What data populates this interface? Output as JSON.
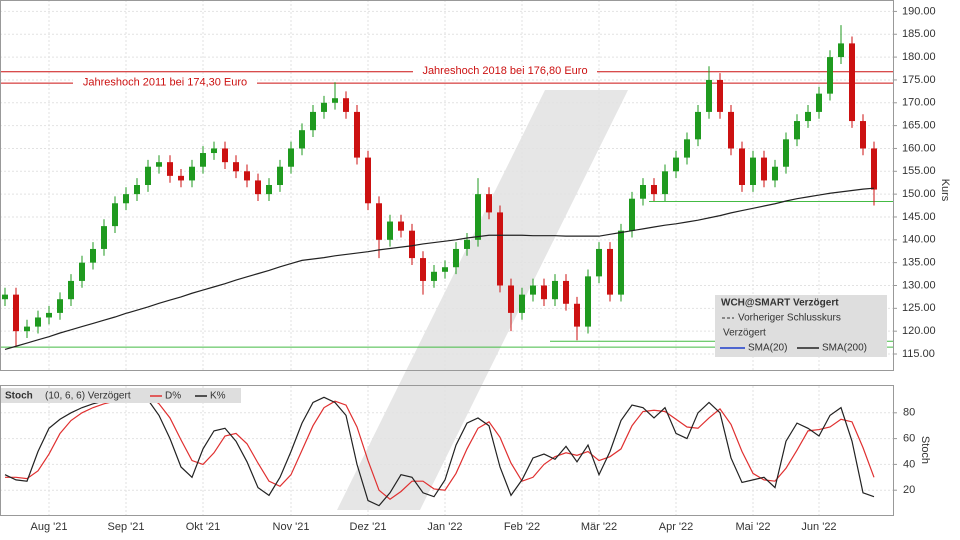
{
  "chart_data": [
    {
      "type": "candlestick",
      "axis_label": "Kurs",
      "categories": [
        null,
        null,
        null,
        null,
        "Aug '21",
        null,
        null,
        null,
        null,
        null,
        null,
        "Sep '21",
        null,
        null,
        null,
        null,
        null,
        null,
        "Okt '21",
        null,
        null,
        null,
        null,
        null,
        null,
        null,
        "Nov '21",
        null,
        null,
        null,
        null,
        null,
        null,
        "Dez '21",
        null,
        null,
        null,
        null,
        null,
        null,
        "Jan '22",
        null,
        null,
        null,
        null,
        null,
        null,
        "Feb '22",
        null,
        null,
        null,
        null,
        null,
        null,
        "Mär '22",
        null,
        null,
        null,
        null,
        null,
        null,
        "Apr '22",
        null,
        null,
        null,
        null,
        null,
        null,
        "Mai '22",
        null,
        null,
        null,
        null,
        null,
        "Jun '22",
        null,
        null,
        null,
        null,
        null
      ],
      "open": [
        127,
        128,
        120,
        121,
        123,
        124,
        127,
        131,
        135,
        138,
        143,
        148,
        150,
        152,
        156,
        157,
        154,
        153,
        156,
        159,
        160,
        157,
        155,
        153,
        150,
        152,
        156,
        160,
        164,
        168,
        170,
        171,
        168,
        158,
        148,
        140,
        144,
        142,
        136,
        131,
        133,
        134,
        138,
        140,
        150,
        146,
        130,
        124,
        128,
        130,
        127,
        131,
        126,
        121,
        132,
        138,
        128,
        142,
        149,
        152,
        150,
        155,
        158,
        162,
        168,
        175,
        168,
        160,
        152,
        158,
        153,
        156,
        162,
        166,
        168,
        172,
        180,
        183,
        166,
        160
      ],
      "high": [
        129.5,
        129.5,
        122.5,
        124.5,
        125.5,
        128.5,
        132.5,
        136.5,
        139.5,
        144.5,
        149.5,
        151.5,
        153.5,
        157.5,
        158.5,
        158.5,
        155.5,
        157.5,
        160.5,
        161.5,
        161.5,
        158.5,
        156.5,
        154.5,
        153.5,
        157.5,
        161.5,
        165.5,
        169.5,
        171.5,
        174.5,
        172.5,
        169.5,
        159.5,
        149.5,
        145.5,
        145.5,
        143.5,
        137.5,
        134.5,
        135.5,
        139.5,
        141.5,
        153.5,
        151.5,
        147.5,
        131.5,
        129.5,
        131.5,
        131.5,
        132.5,
        132.5,
        127.5,
        133.5,
        139.5,
        139.5,
        143.5,
        150.5,
        153.5,
        153.5,
        156.5,
        159.5,
        163.5,
        169.5,
        178,
        176.5,
        169.5,
        161.5,
        159.5,
        159.5,
        157.5,
        163.5,
        167.5,
        169.5,
        173.5,
        181.5,
        187,
        184.5,
        167.5,
        161.5
      ],
      "low": [
        125.5,
        116.5,
        118.5,
        119.5,
        121.5,
        122.5,
        125.5,
        129.5,
        133.5,
        136.5,
        141.5,
        146.5,
        148.5,
        150.5,
        154.5,
        152.5,
        151.5,
        151.5,
        154.5,
        157.5,
        155.5,
        153.5,
        151.5,
        148.5,
        148.5,
        150.5,
        154.5,
        158.5,
        162.5,
        166.5,
        168.5,
        166.5,
        156.5,
        146.5,
        136,
        138.5,
        140.5,
        134.5,
        128,
        129.5,
        131.5,
        132.5,
        136.5,
        138.5,
        144.5,
        128.5,
        120,
        122.5,
        126.5,
        125.5,
        125.5,
        124.5,
        118,
        119.5,
        130.5,
        126.5,
        126.5,
        140.5,
        147.5,
        148.5,
        148.5,
        153.5,
        156.5,
        160.5,
        166.5,
        166.5,
        158.5,
        150.5,
        150.5,
        151.5,
        151.5,
        154.5,
        160.5,
        164.5,
        166.5,
        170.5,
        178.5,
        164.5,
        158.5,
        147.5
      ],
      "close": [
        128,
        120,
        121,
        123,
        124,
        127,
        131,
        135,
        138,
        143,
        148,
        150,
        152,
        156,
        157,
        154,
        153,
        156,
        159,
        160,
        157,
        155,
        153,
        150,
        152,
        156,
        160,
        164,
        168,
        170,
        171,
        168,
        158,
        148,
        140,
        144,
        142,
        136,
        131,
        133,
        134,
        138,
        140,
        150,
        146,
        130,
        124,
        128,
        130,
        127,
        131,
        126,
        121,
        132,
        138,
        128,
        142,
        149,
        152,
        150,
        155,
        158,
        162,
        168,
        175,
        168,
        160,
        152,
        158,
        153,
        156,
        162,
        166,
        168,
        172,
        180,
        183,
        166,
        160,
        151
      ],
      "up_color": "#1f9a1f",
      "down_color": "#cc1111",
      "series": [
        {
          "name": "SMA(200)",
          "color": "#222222",
          "values": [
            116,
            116.7,
            117.4,
            118.1,
            118.8,
            119.6,
            120.3,
            121,
            121.7,
            122.4,
            123.1,
            123.9,
            124.6,
            125.3,
            126.1,
            126.8,
            127.5,
            128.3,
            129,
            129.7,
            130.4,
            131.2,
            131.9,
            132.6,
            133.3,
            134.1,
            134.8,
            135.5,
            135.8,
            136.1,
            136.5,
            136.8,
            137.1,
            137.4,
            137.8,
            138.1,
            138.4,
            138.7,
            139.1,
            139.4,
            139.7,
            140,
            140.4,
            140.7,
            141,
            141,
            141,
            141,
            140.9,
            140.9,
            140.9,
            140.8,
            140.8,
            140.8,
            140.8,
            141.2,
            141.6,
            142,
            142.4,
            142.8,
            143.2,
            143.5,
            143.9,
            144.3,
            144.8,
            145.3,
            145.9,
            146.4,
            146.9,
            147.4,
            147.9,
            148.5,
            149,
            149.4,
            149.8,
            150.2,
            150.5,
            150.8,
            151.1,
            151.3
          ]
        }
      ],
      "hlines": [
        {
          "value": 176.8,
          "label": "Jahreshoch 2018 bei 176,80 Euro",
          "color": "#cc1111"
        },
        {
          "value": 174.3,
          "label": "Jahreshoch 2011 bei 174,30 Euro",
          "color": "#cc1111"
        },
        {
          "value": 148.4,
          "color": "#44bb44",
          "start": 59
        },
        {
          "value": 117.8,
          "color": "#44bb44",
          "start": 50
        },
        {
          "value": 116.5,
          "color": "#44bb44",
          "start": 0
        }
      ],
      "legend": {
        "title": "WCH@SMART Verzögert",
        "items": [
          "Vorheriger Schlusskurs",
          "Verzögert",
          "SMA(20)",
          "SMA(200)"
        ],
        "colors": [
          "#333333",
          null,
          "#1f3fcc",
          "#222222"
        ]
      },
      "ylim": [
        111.5,
        192.5
      ],
      "yticks": [
        {
          "value": 115,
          "label": "115.00"
        },
        {
          "value": 120,
          "label": "120.00"
        },
        {
          "value": 125,
          "label": "125.00"
        },
        {
          "value": 130,
          "label": "130.00"
        },
        {
          "value": 135,
          "label": "135.00"
        },
        {
          "value": 140,
          "label": "140.00"
        },
        {
          "value": 145,
          "label": "145.00"
        },
        {
          "value": 150,
          "label": "150.00"
        },
        {
          "value": 155,
          "label": "155.00"
        },
        {
          "value": 160,
          "label": "160.00"
        },
        {
          "value": 165,
          "label": "165.00"
        },
        {
          "value": 170,
          "label": "170.00"
        },
        {
          "value": 175,
          "label": "175.00"
        },
        {
          "value": 180,
          "label": "180.00"
        },
        {
          "value": 185,
          "label": "185.00"
        },
        {
          "value": 190,
          "label": "190.00"
        }
      ],
      "grid": true
    },
    {
      "type": "line",
      "title": "Stoch",
      "subtitle": "(10, 6, 6) Verzögert",
      "axis_label": "Stoch",
      "series": [
        {
          "name": "D%",
          "color": "#e03030",
          "values": [
            30,
            30,
            29,
            35,
            48,
            64,
            74,
            80,
            84,
            87,
            89,
            92,
            93,
            93,
            87,
            76,
            59,
            43,
            40,
            49,
            62,
            64,
            56,
            41,
            27,
            23,
            32,
            51,
            70,
            84,
            89,
            86,
            69,
            43,
            20,
            13,
            19,
            27,
            27,
            21,
            20,
            33,
            52,
            68,
            73,
            61,
            41,
            27,
            30,
            40,
            46,
            49,
            47,
            50,
            43,
            46,
            52,
            70,
            81,
            82,
            81,
            75,
            69,
            68,
            76,
            83,
            71,
            50,
            33,
            28,
            27,
            37,
            51,
            66,
            67,
            69,
            75,
            73,
            53,
            30
          ]
        },
        {
          "name": "K%",
          "color": "#222222",
          "values": [
            32,
            28,
            27,
            50,
            68,
            75,
            80,
            84,
            87,
            89,
            92,
            94,
            94,
            90,
            78,
            60,
            38,
            30,
            52,
            66,
            68,
            58,
            42,
            22,
            16,
            30,
            50,
            72,
            88,
            92,
            88,
            78,
            40,
            12,
            8,
            18,
            32,
            30,
            18,
            15,
            28,
            55,
            72,
            76,
            70,
            38,
            16,
            28,
            45,
            48,
            44,
            54,
            42,
            55,
            32,
            50,
            74,
            86,
            84,
            76,
            84,
            64,
            60,
            80,
            88,
            80,
            45,
            26,
            28,
            30,
            22,
            58,
            72,
            68,
            62,
            78,
            84,
            58,
            18,
            15
          ]
        }
      ],
      "ylim": [
        0,
        100
      ],
      "yticks": [
        20,
        40,
        60,
        80
      ],
      "grid": true
    }
  ]
}
